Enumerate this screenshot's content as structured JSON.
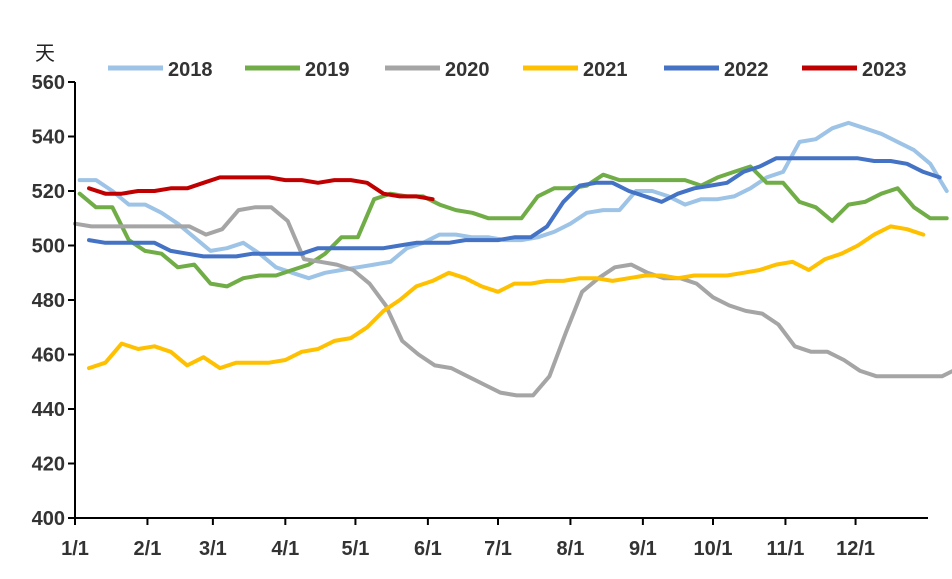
{
  "chart_data": {
    "type": "line",
    "y_unit": "天",
    "ylim": [
      400,
      560
    ],
    "y_ticks": [
      400,
      420,
      440,
      460,
      480,
      500,
      520,
      540,
      560
    ],
    "x_range": [
      1,
      366
    ],
    "x_ticks": [
      {
        "label": "1/1",
        "day": 1
      },
      {
        "label": "2/1",
        "day": 32
      },
      {
        "label": "3/1",
        "day": 60
      },
      {
        "label": "4/1",
        "day": 91
      },
      {
        "label": "5/1",
        "day": 121
      },
      {
        "label": "6/1",
        "day": 152
      },
      {
        "label": "7/1",
        "day": 182
      },
      {
        "label": "8/1",
        "day": 213
      },
      {
        "label": "9/1",
        "day": 244
      },
      {
        "label": "10/1",
        "day": 274
      },
      {
        "label": "11/1",
        "day": 305
      },
      {
        "label": "12/1",
        "day": 335
      }
    ],
    "grid": false,
    "legend_position": "top",
    "series": [
      {
        "name": "2018",
        "color": "#9DC3E6",
        "points": [
          [
            3,
            524
          ],
          [
            10,
            524
          ],
          [
            17,
            520
          ],
          [
            24,
            515
          ],
          [
            31,
            515
          ],
          [
            38,
            512
          ],
          [
            45,
            508
          ],
          [
            52,
            503
          ],
          [
            59,
            498
          ],
          [
            66,
            499
          ],
          [
            73,
            501
          ],
          [
            80,
            497
          ],
          [
            87,
            492
          ],
          [
            94,
            490
          ],
          [
            101,
            488
          ],
          [
            108,
            490
          ],
          [
            115,
            491
          ],
          [
            122,
            492
          ],
          [
            129,
            493
          ],
          [
            136,
            494
          ],
          [
            143,
            499
          ],
          [
            150,
            501
          ],
          [
            157,
            504
          ],
          [
            164,
            504
          ],
          [
            171,
            503
          ],
          [
            178,
            503
          ],
          [
            185,
            502
          ],
          [
            192,
            502
          ],
          [
            199,
            503
          ],
          [
            206,
            505
          ],
          [
            213,
            508
          ],
          [
            220,
            512
          ],
          [
            227,
            513
          ],
          [
            234,
            513
          ],
          [
            241,
            520
          ],
          [
            248,
            520
          ],
          [
            255,
            518
          ],
          [
            262,
            515
          ],
          [
            269,
            517
          ],
          [
            276,
            517
          ],
          [
            283,
            518
          ],
          [
            290,
            521
          ],
          [
            297,
            525
          ],
          [
            304,
            527
          ],
          [
            311,
            538
          ],
          [
            318,
            539
          ],
          [
            325,
            543
          ],
          [
            332,
            545
          ],
          [
            339,
            543
          ],
          [
            346,
            541
          ],
          [
            353,
            538
          ],
          [
            360,
            535
          ],
          [
            367,
            530
          ],
          [
            374,
            520
          ]
        ]
      },
      {
        "name": "2019",
        "color": "#70AD47",
        "points": [
          [
            3,
            519
          ],
          [
            10,
            514
          ],
          [
            17,
            514
          ],
          [
            24,
            502
          ],
          [
            31,
            498
          ],
          [
            38,
            497
          ],
          [
            45,
            492
          ],
          [
            52,
            493
          ],
          [
            59,
            486
          ],
          [
            66,
            485
          ],
          [
            73,
            488
          ],
          [
            80,
            489
          ],
          [
            87,
            489
          ],
          [
            94,
            491
          ],
          [
            101,
            493
          ],
          [
            108,
            497
          ],
          [
            115,
            503
          ],
          [
            122,
            503
          ],
          [
            129,
            517
          ],
          [
            136,
            519
          ],
          [
            143,
            518
          ],
          [
            150,
            518
          ],
          [
            157,
            515
          ],
          [
            164,
            513
          ],
          [
            171,
            512
          ],
          [
            178,
            510
          ],
          [
            185,
            510
          ],
          [
            192,
            510
          ],
          [
            199,
            518
          ],
          [
            206,
            521
          ],
          [
            213,
            521
          ],
          [
            220,
            522
          ],
          [
            227,
            526
          ],
          [
            234,
            524
          ],
          [
            241,
            524
          ],
          [
            248,
            524
          ],
          [
            255,
            524
          ],
          [
            262,
            524
          ],
          [
            269,
            522
          ],
          [
            276,
            525
          ],
          [
            283,
            527
          ],
          [
            290,
            529
          ],
          [
            297,
            523
          ],
          [
            304,
            523
          ],
          [
            311,
            516
          ],
          [
            318,
            514
          ],
          [
            325,
            509
          ],
          [
            332,
            515
          ],
          [
            339,
            516
          ],
          [
            346,
            519
          ],
          [
            353,
            521
          ],
          [
            360,
            514
          ],
          [
            367,
            510
          ],
          [
            374,
            510
          ]
        ]
      },
      {
        "name": "2020",
        "color": "#A5A5A5",
        "points": [
          [
            1,
            508
          ],
          [
            8,
            507
          ],
          [
            15,
            507
          ],
          [
            22,
            507
          ],
          [
            29,
            507
          ],
          [
            36,
            507
          ],
          [
            43,
            507
          ],
          [
            50,
            507
          ],
          [
            57,
            504
          ],
          [
            64,
            506
          ],
          [
            71,
            513
          ],
          [
            78,
            514
          ],
          [
            85,
            514
          ],
          [
            92,
            509
          ],
          [
            99,
            495
          ],
          [
            106,
            494
          ],
          [
            113,
            493
          ],
          [
            120,
            491
          ],
          [
            127,
            486
          ],
          [
            134,
            478
          ],
          [
            141,
            465
          ],
          [
            148,
            460
          ],
          [
            155,
            456
          ],
          [
            162,
            455
          ],
          [
            169,
            452
          ],
          [
            176,
            449
          ],
          [
            183,
            446
          ],
          [
            190,
            445
          ],
          [
            197,
            445
          ],
          [
            204,
            452
          ],
          [
            211,
            468
          ],
          [
            218,
            483
          ],
          [
            225,
            488
          ],
          [
            232,
            492
          ],
          [
            239,
            493
          ],
          [
            246,
            490
          ],
          [
            253,
            488
          ],
          [
            260,
            488
          ],
          [
            267,
            486
          ],
          [
            274,
            481
          ],
          [
            281,
            478
          ],
          [
            288,
            476
          ],
          [
            295,
            475
          ],
          [
            302,
            471
          ],
          [
            309,
            463
          ],
          [
            316,
            461
          ],
          [
            323,
            461
          ],
          [
            330,
            458
          ],
          [
            337,
            454
          ],
          [
            344,
            452
          ],
          [
            351,
            452
          ],
          [
            358,
            452
          ],
          [
            365,
            452
          ],
          [
            372,
            452
          ],
          [
            379,
            455
          ]
        ]
      },
      {
        "name": "2021",
        "color": "#FFC000",
        "points": [
          [
            7,
            455
          ],
          [
            14,
            457
          ],
          [
            21,
            464
          ],
          [
            28,
            462
          ],
          [
            35,
            463
          ],
          [
            42,
            461
          ],
          [
            49,
            456
          ],
          [
            56,
            459
          ],
          [
            63,
            455
          ],
          [
            70,
            457
          ],
          [
            77,
            457
          ],
          [
            84,
            457
          ],
          [
            91,
            458
          ],
          [
            98,
            461
          ],
          [
            105,
            462
          ],
          [
            112,
            465
          ],
          [
            119,
            466
          ],
          [
            126,
            470
          ],
          [
            133,
            476
          ],
          [
            140,
            480
          ],
          [
            147,
            485
          ],
          [
            154,
            487
          ],
          [
            161,
            490
          ],
          [
            168,
            488
          ],
          [
            175,
            485
          ],
          [
            182,
            483
          ],
          [
            189,
            486
          ],
          [
            196,
            486
          ],
          [
            203,
            487
          ],
          [
            210,
            487
          ],
          [
            217,
            488
          ],
          [
            224,
            488
          ],
          [
            231,
            487
          ],
          [
            238,
            488
          ],
          [
            245,
            489
          ],
          [
            252,
            489
          ],
          [
            259,
            488
          ],
          [
            266,
            489
          ],
          [
            273,
            489
          ],
          [
            280,
            489
          ],
          [
            287,
            490
          ],
          [
            294,
            491
          ],
          [
            301,
            493
          ],
          [
            308,
            494
          ],
          [
            315,
            491
          ],
          [
            322,
            495
          ],
          [
            329,
            497
          ],
          [
            336,
            500
          ],
          [
            343,
            504
          ],
          [
            350,
            507
          ],
          [
            357,
            506
          ],
          [
            364,
            504
          ]
        ]
      },
      {
        "name": "2022",
        "color": "#4472C4",
        "points": [
          [
            7,
            502
          ],
          [
            14,
            501
          ],
          [
            21,
            501
          ],
          [
            28,
            501
          ],
          [
            35,
            501
          ],
          [
            42,
            498
          ],
          [
            49,
            497
          ],
          [
            56,
            496
          ],
          [
            63,
            496
          ],
          [
            70,
            496
          ],
          [
            77,
            497
          ],
          [
            84,
            497
          ],
          [
            91,
            497
          ],
          [
            98,
            497
          ],
          [
            105,
            499
          ],
          [
            112,
            499
          ],
          [
            119,
            499
          ],
          [
            126,
            499
          ],
          [
            133,
            499
          ],
          [
            140,
            500
          ],
          [
            147,
            501
          ],
          [
            154,
            501
          ],
          [
            161,
            501
          ],
          [
            168,
            502
          ],
          [
            175,
            502
          ],
          [
            182,
            502
          ],
          [
            189,
            503
          ],
          [
            196,
            503
          ],
          [
            203,
            507
          ],
          [
            210,
            516
          ],
          [
            217,
            522
          ],
          [
            224,
            523
          ],
          [
            231,
            523
          ],
          [
            238,
            520
          ],
          [
            245,
            518
          ],
          [
            252,
            516
          ],
          [
            259,
            519
          ],
          [
            266,
            521
          ],
          [
            273,
            522
          ],
          [
            280,
            523
          ],
          [
            287,
            527
          ],
          [
            294,
            529
          ],
          [
            301,
            532
          ],
          [
            308,
            532
          ],
          [
            315,
            532
          ],
          [
            322,
            532
          ],
          [
            329,
            532
          ],
          [
            336,
            532
          ],
          [
            343,
            531
          ],
          [
            350,
            531
          ],
          [
            357,
            530
          ],
          [
            364,
            527
          ],
          [
            371,
            525
          ]
        ]
      },
      {
        "name": "2023",
        "color": "#C00000",
        "points": [
          [
            7,
            521
          ],
          [
            14,
            519
          ],
          [
            21,
            519
          ],
          [
            28,
            520
          ],
          [
            35,
            520
          ],
          [
            42,
            521
          ],
          [
            49,
            521
          ],
          [
            56,
            523
          ],
          [
            63,
            525
          ],
          [
            70,
            525
          ],
          [
            77,
            525
          ],
          [
            84,
            525
          ],
          [
            91,
            524
          ],
          [
            98,
            524
          ],
          [
            105,
            523
          ],
          [
            112,
            524
          ],
          [
            119,
            524
          ],
          [
            126,
            523
          ],
          [
            133,
            519
          ],
          [
            140,
            518
          ],
          [
            147,
            518
          ],
          [
            154,
            517
          ]
        ]
      }
    ]
  }
}
